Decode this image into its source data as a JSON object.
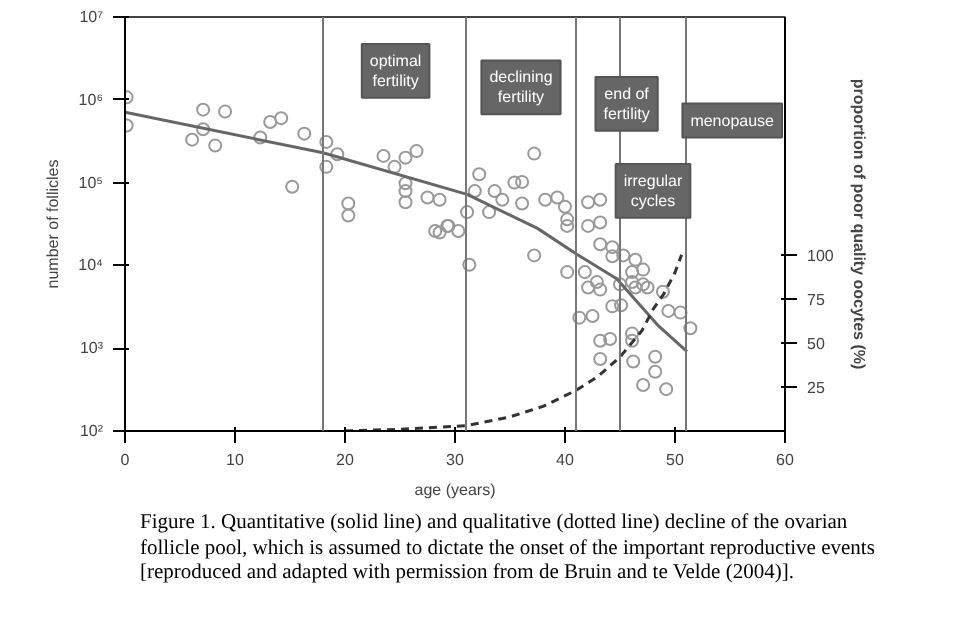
{
  "chart_data": {
    "type": "scatter",
    "xlabel": "age (years)",
    "ylabel": "number of follicles",
    "y2label": "proportion of poor quality oocytes (%)",
    "xlim": [
      0,
      60
    ],
    "xticks": [
      0,
      10,
      20,
      30,
      40,
      50,
      60
    ],
    "ylim": [
      100,
      10000000
    ],
    "yticks": [
      {
        "value": 100,
        "label": "10²"
      },
      {
        "value": 1000,
        "label": "10³"
      },
      {
        "value": 10000,
        "label": "10⁴"
      },
      {
        "value": 100000,
        "label": "10⁵"
      },
      {
        "value": 1000000,
        "label": "10⁶"
      },
      {
        "value": 10000000,
        "label": "10⁷"
      }
    ],
    "y2lim": [
      0,
      235
    ],
    "y2ticks": [
      25,
      50,
      75,
      100
    ],
    "log": "y",
    "grid": false,
    "marker": "circle",
    "series": [
      {
        "color": "#999999",
        "x": [
          0.15,
          0.15,
          7.1,
          9.1,
          6.1,
          8.2,
          7.1,
          12.3,
          13.2,
          14.2,
          15.2,
          16.3,
          18.3,
          18.3,
          19.3,
          20.3,
          20.3,
          23.5,
          24.5,
          25.5,
          26.5,
          25.5,
          25.5,
          25.5,
          27.5,
          28.6,
          28.6,
          29.4,
          32.2,
          31.8,
          33.6,
          35.4,
          36.1,
          37.2,
          34.3,
          36.1,
          38.2,
          39.3,
          40.0,
          40.2,
          40.2,
          42.1,
          43.2,
          42.1,
          43.2,
          43.2,
          44.3,
          31.1,
          33.1,
          28.2,
          29.3,
          30.3,
          31.3,
          37.2,
          40.2,
          41.8,
          44.3,
          45.3,
          46.4,
          46.1,
          47.1,
          47.1,
          46.1,
          42.1,
          42.9,
          42.5,
          41.3,
          43.2,
          45.0,
          46.4,
          47.5,
          44.3,
          45.1,
          43.2,
          44.1,
          43.2,
          46.1,
          46.1,
          46.2,
          47.1,
          48.2,
          48.2,
          49.2,
          49.4,
          50.5,
          51.4,
          48.9
        ],
        "values": [
          1070000,
          490000,
          760000,
          720000,
          330000,
          280000,
          440000,
          350000,
          540000,
          600000,
          89000,
          390000,
          310000,
          155000,
          220000,
          56000,
          40000,
          210000,
          155000,
          200000,
          240000,
          98000,
          79000,
          58000,
          66000,
          62000,
          25000,
          30000,
          126000,
          79000,
          79000,
          100000,
          102000,
          224000,
          62000,
          56000,
          62000,
          66000,
          51000,
          36000,
          30000,
          58000,
          62000,
          30000,
          33000,
          18000,
          16600,
          44000,
          44000,
          26000,
          30000,
          26000,
          10200,
          13200,
          8300,
          8300,
          12900,
          13200,
          11700,
          8300,
          8900,
          5900,
          6300,
          5400,
          6300,
          2450,
          2340,
          5100,
          5900,
          5400,
          5400,
          3200,
          3300,
          1230,
          1290,
          740,
          1510,
          1230,
          690,
          360,
          790,
          520,
          320,
          2820,
          2690,
          1740,
          4800
        ]
      },
      {
        "type": "line",
        "color": "#666666",
        "line_style": "solid",
        "marker": "none",
        "x": [
          0,
          18,
          31.1,
          37.5,
          41,
          44.7,
          48.5,
          51.1
        ],
        "values": [
          708000,
          229000,
          72000,
          28000,
          13800,
          6900,
          1860,
          910
        ]
      },
      {
        "type": "line",
        "axis": "y2",
        "color": "#333333",
        "line_style": "dashed",
        "marker": "none",
        "x": [
          20,
          25,
          28,
          31,
          35,
          38,
          41,
          43,
          45,
          47,
          48,
          49,
          50,
          50.6
        ],
        "values": [
          0,
          1,
          2,
          3,
          8,
          14,
          23,
          31,
          42,
          57,
          69,
          78,
          90,
          100
        ]
      }
    ],
    "ref_lines": [
      {
        "axis": "x",
        "value": 18,
        "color": "#777777"
      },
      {
        "axis": "x",
        "value": 31,
        "color": "#777777"
      },
      {
        "axis": "x",
        "value": 41,
        "color": "#777777"
      },
      {
        "axis": "x",
        "value": 45,
        "color": "#777777"
      },
      {
        "axis": "x",
        "value": 51,
        "color": "#777777"
      }
    ],
    "annotations": [
      "optimal\nfertility",
      "declining\nfertility",
      "end of\nfertility",
      "menopause",
      "irregular\ncycles",
      "Figure 1. Quantitative (solid line) and qualitative (dotted line) decline of the ovarian follicle pool, which is assumed to dictate the onset of the important reproductive events [reproduced and adapted with permission from de Bruin and te Velde (2004)]."
    ]
  }
}
